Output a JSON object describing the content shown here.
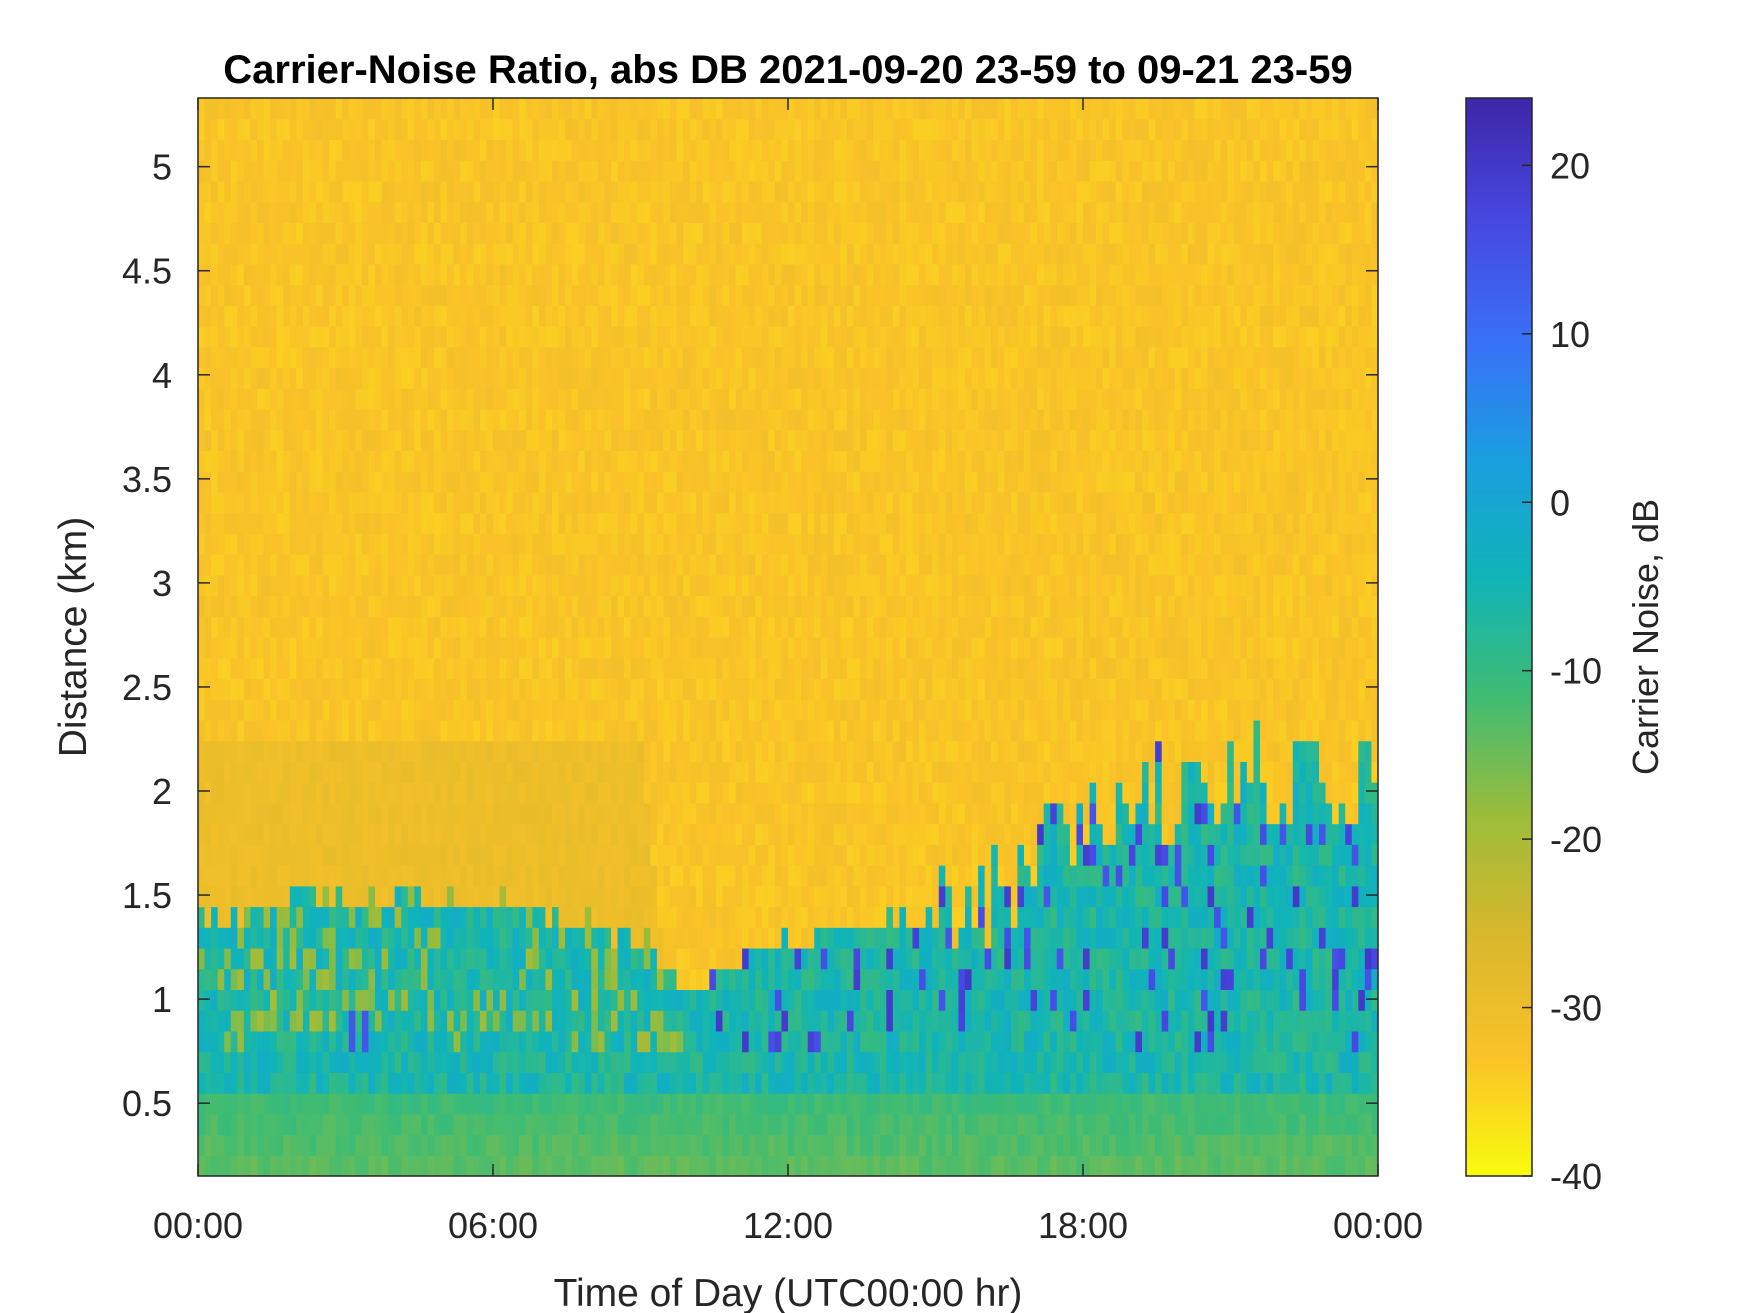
{
  "chart_data": {
    "type": "heatmap",
    "title": "Carrier-Noise Ratio, abs DB 2021-09-20 23-59 to 09-21 23-59",
    "xlabel": "Time of Day (UTC00:00 hr)",
    "ylabel": "Distance (km)",
    "x_unit": "hours",
    "xlim": [
      0,
      24
    ],
    "ylim": [
      0.15,
      5.33
    ],
    "x_ticks": [
      {
        "value": 0,
        "label": "00:00"
      },
      {
        "value": 6,
        "label": "06:00"
      },
      {
        "value": 12,
        "label": "12:00"
      },
      {
        "value": 18,
        "label": "18:00"
      },
      {
        "value": 24,
        "label": "00:00"
      }
    ],
    "y_ticks": [
      {
        "value": 0.5,
        "label": "0.5"
      },
      {
        "value": 1,
        "label": "1"
      },
      {
        "value": 1.5,
        "label": "1.5"
      },
      {
        "value": 2,
        "label": "2"
      },
      {
        "value": 2.5,
        "label": "2.5"
      },
      {
        "value": 3,
        "label": "3"
      },
      {
        "value": 3.5,
        "label": "3.5"
      },
      {
        "value": 4,
        "label": "4"
      },
      {
        "value": 4.5,
        "label": "4.5"
      },
      {
        "value": 5,
        "label": "5"
      }
    ],
    "colorbar": {
      "label": "Carrier Noise, dB",
      "clim": [
        -40,
        24
      ],
      "ticks": [
        {
          "value": 20,
          "label": "20"
        },
        {
          "value": 10,
          "label": "10"
        },
        {
          "value": 0,
          "label": "0"
        },
        {
          "value": -10,
          "label": "-10"
        },
        {
          "value": -20,
          "label": "-20"
        },
        {
          "value": -30,
          "label": "-30"
        },
        {
          "value": -40,
          "label": "-40"
        }
      ],
      "colormap": [
        "#f9fb0e",
        "#fac228",
        "#d9b72c",
        "#9dbc3a",
        "#3fbc73",
        "#10b4b8",
        "#1a9ee0",
        "#3a6ff8",
        "#4747e0",
        "#3e26a8"
      ]
    },
    "approx_profile": {
      "background_value": -33,
      "time_hours": [
        0,
        3,
        6,
        9,
        10,
        12,
        14,
        16,
        18,
        20,
        22,
        24
      ],
      "top_of_signal_km": [
        1.4,
        1.5,
        1.45,
        1.3,
        1.05,
        1.25,
        1.35,
        1.5,
        1.85,
        2.05,
        2.05,
        2.0
      ],
      "haze_top_km": [
        2.2,
        2.2,
        2.2,
        2.2,
        0,
        0,
        0,
        0,
        0,
        0,
        0,
        0
      ],
      "haze_value": -30,
      "surface_value": -14,
      "mid_layer_value": -6,
      "strong_cells_value": 14
    }
  }
}
